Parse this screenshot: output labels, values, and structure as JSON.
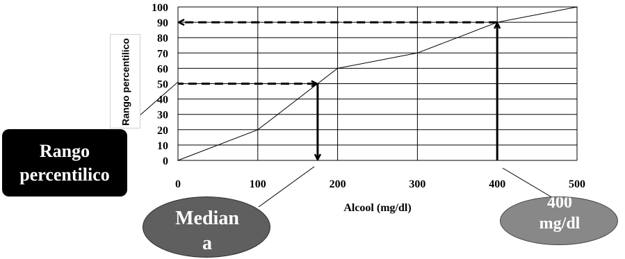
{
  "chart_data": {
    "type": "line",
    "x": [
      0,
      100,
      200,
      300,
      400,
      500
    ],
    "series": [
      {
        "values": [
          0,
          20,
          60,
          70,
          90,
          100
        ]
      }
    ],
    "xlabel": "Alcool (mg/dl)",
    "ylabel": "Rango percentilico",
    "xlim": [
      0,
      500
    ],
    "ylim": [
      0,
      100
    ],
    "xticks": [
      0,
      100,
      200,
      300,
      400,
      500
    ],
    "yticks": [
      0,
      10,
      20,
      30,
      40,
      50,
      60,
      70,
      80,
      90,
      100
    ],
    "grid": true,
    "annotations": {
      "median_arrow": {
        "y_percentile": 50,
        "x_value": 175
      },
      "p90_arrow": {
        "y_percentile": 90,
        "x_value": 400
      }
    }
  },
  "callouts": {
    "percentile_box": "Rango percentilico",
    "median_ellipse": "Mediana",
    "value_ellipse": "400 mg/dl"
  }
}
